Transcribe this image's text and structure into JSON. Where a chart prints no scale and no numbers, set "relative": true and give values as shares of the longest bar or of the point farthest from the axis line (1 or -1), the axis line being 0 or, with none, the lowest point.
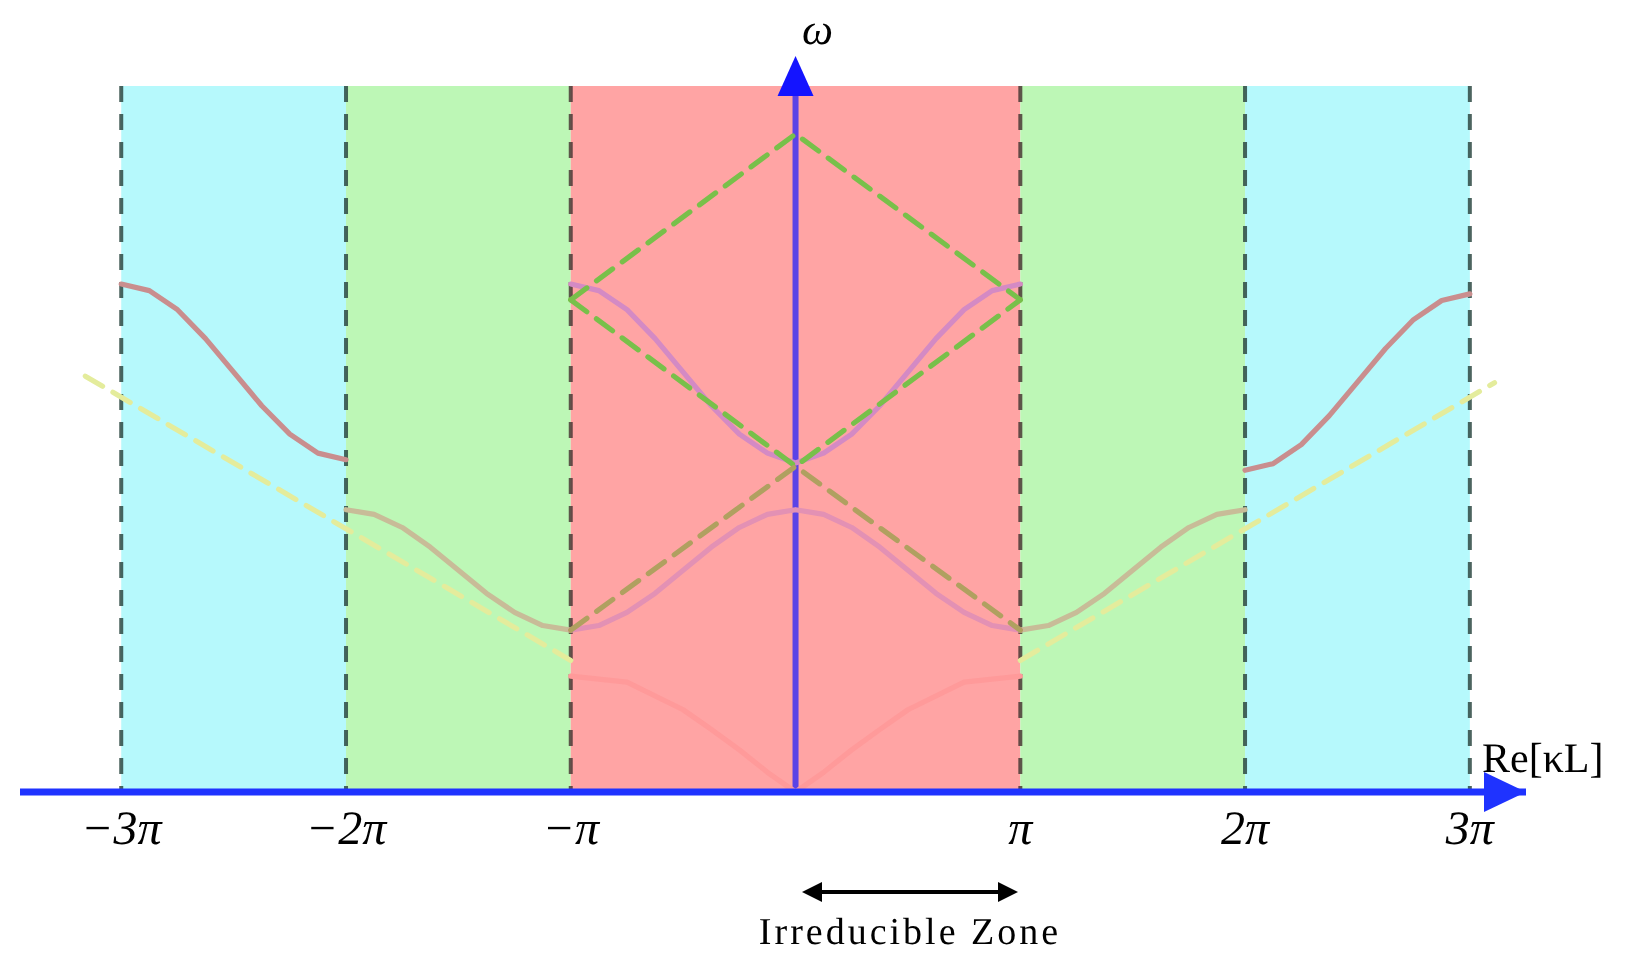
{
  "chart_data": {
    "type": "line",
    "relative": true,
    "xlabel": "Re[κL]",
    "ylabel": "ω",
    "xlim": [
      -10.84,
      10.21
    ],
    "xticks": [
      {
        "value": -9.425,
        "label": "−3π"
      },
      {
        "value": -6.283,
        "label": "−2π"
      },
      {
        "value": -3.142,
        "label": "−π"
      },
      {
        "value": 3.142,
        "label": "π"
      },
      {
        "value": 6.283,
        "label": "2π"
      },
      {
        "value": 9.425,
        "label": "3π"
      }
    ],
    "line_style": "solid",
    "bands": [
      {
        "axis": "x",
        "from": -9.425,
        "to": -6.283,
        "color": "#b6f9fc"
      },
      {
        "axis": "x",
        "from": -6.283,
        "to": -3.142,
        "color": "#bdf7b6"
      },
      {
        "axis": "x",
        "from": -3.142,
        "to": 3.142,
        "color": "#ffa4a4"
      },
      {
        "axis": "x",
        "from": 3.142,
        "to": 6.283,
        "color": "#bdf7b6"
      },
      {
        "axis": "x",
        "from": 6.283,
        "to": 9.425,
        "color": "#b6f9fc"
      }
    ],
    "ref_lines": [
      {
        "axis": "x",
        "value": -9.425,
        "color": "#2e4a44",
        "line_style": "dashed"
      },
      {
        "axis": "x",
        "value": -6.283,
        "color": "#2e4a44",
        "line_style": "dashed"
      },
      {
        "axis": "x",
        "value": -3.142,
        "color": "#4a3a36",
        "line_style": "dashed"
      },
      {
        "axis": "x",
        "value": 0,
        "color": "#5b43e6",
        "line_style": "solid"
      },
      {
        "axis": "x",
        "value": 3.142,
        "color": "#4a3a36",
        "line_style": "dashed"
      },
      {
        "axis": "x",
        "value": 6.283,
        "color": "#2e4a44",
        "line_style": "dashed"
      },
      {
        "axis": "x",
        "value": 9.425,
        "color": "#2e4a44",
        "line_style": "dashed"
      }
    ],
    "series": [
      {
        "color": "#c98e8e",
        "x": [
          -9.425,
          -9.032,
          -8.639,
          -8.247,
          -7.854,
          -7.461,
          -7.069,
          -6.676,
          -6.283
        ],
        "values": [
          0.772,
          0.762,
          0.733,
          0.689,
          0.638,
          0.587,
          0.544,
          0.515,
          0.505
        ]
      },
      {
        "color": "#c98e8e",
        "x": [
          6.283,
          6.676,
          7.069,
          7.461,
          7.854,
          8.247,
          8.639,
          9.032,
          9.425
        ],
        "values": [
          0.489,
          0.499,
          0.528,
          0.572,
          0.623,
          0.674,
          0.718,
          0.747,
          0.757
        ]
      },
      {
        "color": "#c8bc98",
        "x": [
          -6.283,
          -5.89,
          -5.498,
          -5.105,
          -4.712,
          -4.32,
          -3.927,
          -3.534,
          -3.142
        ],
        "values": [
          0.429,
          0.422,
          0.402,
          0.372,
          0.337,
          0.302,
          0.273,
          0.253,
          0.246
        ]
      },
      {
        "color": "#c8bc98",
        "x": [
          3.142,
          3.534,
          3.927,
          4.32,
          4.712,
          5.105,
          5.498,
          5.89,
          6.283
        ],
        "values": [
          0.246,
          0.253,
          0.273,
          0.302,
          0.337,
          0.372,
          0.402,
          0.422,
          0.429
        ]
      },
      {
        "color": "#d48ac4",
        "x": [
          -3.142,
          -2.749,
          -2.356,
          -1.963,
          -1.571,
          -1.178,
          -0.785,
          -0.393,
          0,
          0.393,
          0.785,
          1.178,
          1.571,
          1.963,
          2.356,
          2.749,
          3.142
        ],
        "values": [
          0.772,
          0.762,
          0.733,
          0.689,
          0.638,
          0.587,
          0.544,
          0.515,
          0.5,
          0.515,
          0.544,
          0.587,
          0.638,
          0.689,
          0.733,
          0.762,
          0.772
        ]
      },
      {
        "color": "#e391b4",
        "x": [
          -3.142,
          -2.749,
          -2.356,
          -1.963,
          -1.571,
          -1.178,
          -0.785,
          -0.393,
          0,
          0.393,
          0.785,
          1.178,
          1.571,
          1.963,
          2.356,
          2.749,
          3.142
        ],
        "values": [
          0.246,
          0.253,
          0.273,
          0.302,
          0.337,
          0.372,
          0.402,
          0.422,
          0.429,
          0.422,
          0.402,
          0.372,
          0.337,
          0.302,
          0.273,
          0.253,
          0.246
        ]
      },
      {
        "color": "#ff9a9a",
        "x": [
          -3.142,
          -2.356,
          -1.571,
          -1.178,
          -0.785,
          -0.393,
          0,
          0.393,
          0.785,
          1.178,
          1.571,
          2.356,
          3.142
        ],
        "values": [
          0.176,
          0.167,
          0.125,
          0.095,
          0.064,
          0.03,
          0,
          0.03,
          0.064,
          0.095,
          0.125,
          0.167,
          0.176
        ]
      },
      {
        "color": "#78c04a",
        "line_style": "dashed",
        "x": [
          -3.142,
          0,
          3.142
        ],
        "values": [
          0.748,
          1,
          0.748
        ]
      },
      {
        "color": "#78c04a",
        "line_style": "dashed",
        "x": [
          -3.142,
          0,
          3.142
        ],
        "values": [
          0.748,
          0.495,
          0.748
        ]
      },
      {
        "color": "#b0a060",
        "line_style": "dashed",
        "x": [
          -3.142,
          0,
          3.142
        ],
        "values": [
          0.246,
          0.495,
          0.246
        ]
      },
      {
        "color": "#e4ec9c",
        "line_style": "dashed",
        "x": [
          -9.927,
          -3.142
        ],
        "values": [
          0.632,
          0.2
        ]
      },
      {
        "color": "#e4ec9c",
        "line_style": "dashed",
        "x": [
          3.142,
          9.77
        ],
        "values": [
          0.2,
          0.622
        ]
      }
    ],
    "annotations": [
      "Irreducible Zone"
    ]
  }
}
